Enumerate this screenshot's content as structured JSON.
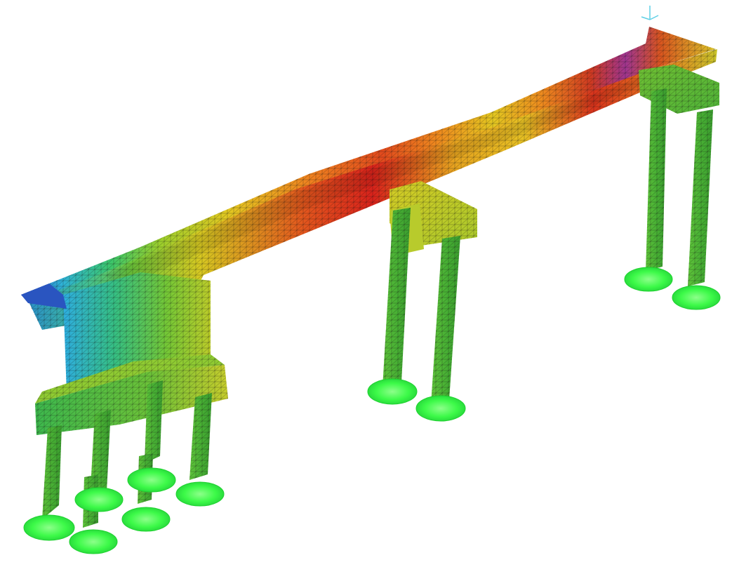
{
  "viewport": {
    "background": "#ffffff",
    "mesh_line_color": "#1a1a1a",
    "triad_color": "#5fd0e6"
  },
  "contour_colors": [
    "#1f3fa8",
    "#2fb3d6",
    "#3cc76a",
    "#8fcf2e",
    "#e6d321",
    "#f39a1d",
    "#e8401e",
    "#c81a1a",
    "#8a2aa0"
  ],
  "support_color": "#33ff44",
  "member_color": "#46b53a"
}
